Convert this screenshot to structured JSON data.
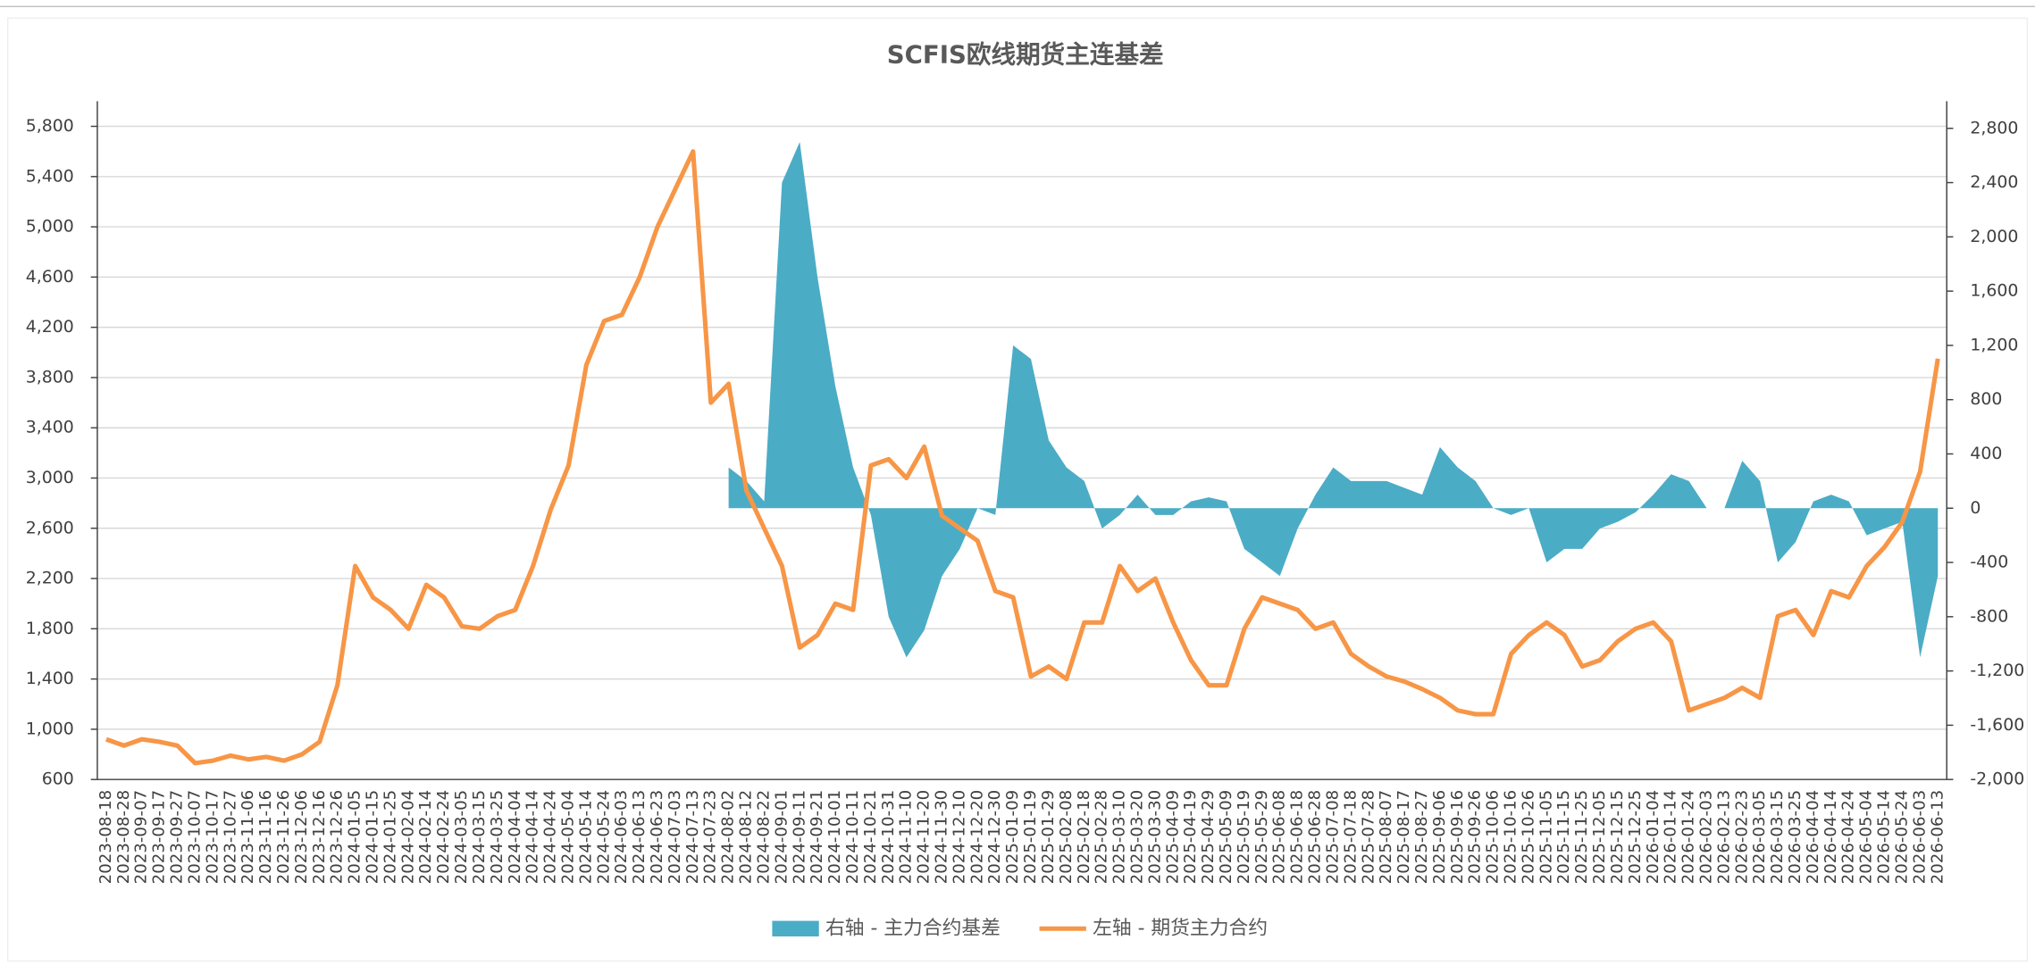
{
  "chart_data": {
    "type": "line",
    "title": "SCFIS欧线期货主连基差",
    "categories": [
      "2023-08-18",
      "2023-08-28",
      "2023-09-07",
      "2023-09-17",
      "2023-09-27",
      "2023-10-07",
      "2023-10-17",
      "2023-10-27",
      "2023-11-06",
      "2023-11-16",
      "2023-11-26",
      "2023-12-06",
      "2023-12-16",
      "2023-12-26",
      "2024-01-05",
      "2024-01-15",
      "2024-01-25",
      "2024-02-04",
      "2024-02-14",
      "2024-02-24",
      "2024-03-05",
      "2024-03-15",
      "2024-03-25",
      "2024-04-04",
      "2024-04-14",
      "2024-04-24",
      "2024-05-04",
      "2024-05-14",
      "2024-05-24",
      "2024-06-03",
      "2024-06-13",
      "2024-06-23",
      "2024-07-03",
      "2024-07-13",
      "2024-07-23",
      "2024-08-02",
      "2024-08-12",
      "2024-08-22",
      "2024-09-01",
      "2024-09-11",
      "2024-09-21",
      "2024-10-01",
      "2024-10-11",
      "2024-10-21",
      "2024-10-31",
      "2024-11-10",
      "2024-11-20",
      "2024-11-30",
      "2024-12-10",
      "2024-12-20",
      "2024-12-30",
      "2025-01-09",
      "2025-01-19",
      "2025-01-29",
      "2025-02-08",
      "2025-02-18",
      "2025-02-28",
      "2025-03-10",
      "2025-03-20",
      "2025-03-30",
      "2025-04-09",
      "2025-04-19",
      "2025-04-29",
      "2025-05-09",
      "2025-05-19",
      "2025-05-29",
      "2025-06-08",
      "2025-06-18",
      "2025-06-28",
      "2025-07-08",
      "2025-07-18",
      "2025-07-28",
      "2025-08-07",
      "2025-08-17",
      "2025-08-27",
      "2025-09-06",
      "2025-09-16",
      "2025-09-26",
      "2025-10-06",
      "2025-10-16",
      "2025-10-26",
      "2025-11-05",
      "2025-11-15",
      "2025-11-25",
      "2025-12-05",
      "2025-12-15",
      "2025-12-25",
      "2026-01-04",
      "2026-01-14",
      "2026-01-24",
      "2026-02-03",
      "2026-02-13",
      "2026-02-23",
      "2026-03-05",
      "2026-03-15",
      "2026-03-25",
      "2026-04-04",
      "2026-04-14",
      "2026-04-24",
      "2026-05-04",
      "2026-05-14",
      "2026-05-24",
      "2026-06-03",
      "2026-06-13"
    ],
    "series": [
      {
        "name": "右轴 - 主力合约基差",
        "type": "area",
        "axis": "y2",
        "color": "#4bacc6",
        "values": [
          null,
          null,
          null,
          null,
          null,
          null,
          null,
          null,
          null,
          null,
          null,
          null,
          null,
          null,
          null,
          null,
          null,
          null,
          null,
          null,
          null,
          null,
          null,
          null,
          null,
          null,
          null,
          null,
          null,
          null,
          null,
          null,
          null,
          null,
          null,
          300,
          200,
          50,
          2400,
          2700,
          1700,
          900,
          300,
          -50,
          -800,
          -1100,
          -900,
          -500,
          -300,
          0,
          -50,
          1200,
          1100,
          500,
          300,
          200,
          -150,
          -50,
          100,
          -50,
          -50,
          50,
          80,
          50,
          -300,
          -400,
          -500,
          -150,
          100,
          300,
          200,
          200,
          200,
          150,
          100,
          450,
          300,
          200,
          0,
          -50,
          0,
          -400,
          -300,
          -300,
          -150,
          -100,
          -30,
          100,
          250,
          200,
          0,
          0,
          350,
          200,
          -400,
          -250,
          50,
          100,
          50,
          -200,
          -150,
          -100,
          -1100,
          -500
        ]
      },
      {
        "name": "左轴 - 期货主力合约",
        "type": "line",
        "color": "#f79646",
        "values": [
          920,
          870,
          920,
          900,
          870,
          730,
          750,
          790,
          760,
          780,
          750,
          800,
          900,
          1350,
          2300,
          2050,
          1950,
          1800,
          2150,
          2050,
          1820,
          1800,
          1900,
          1950,
          2300,
          2750,
          3100,
          3900,
          4250,
          4300,
          4600,
          5000,
          5300,
          5600,
          3600,
          3750,
          2900,
          2600,
          2300,
          1650,
          1750,
          2000,
          1950,
          3100,
          3150,
          3000,
          3250,
          2700,
          2600,
          2500,
          2100,
          2050,
          1420,
          1500,
          1400,
          1850,
          1850,
          2300,
          2100,
          2200,
          1850,
          1550,
          1350,
          1350,
          1800,
          2050,
          2000,
          1950,
          1800,
          1850,
          1600,
          1500,
          1420,
          1380,
          1320,
          1250,
          1150,
          1120,
          1120,
          1600,
          1750,
          1850,
          1750,
          1500,
          1550,
          1700,
          1800,
          1850,
          1700,
          1150,
          1200,
          1250,
          1330,
          1250,
          1900,
          1950,
          1750,
          2100,
          2050,
          2300,
          2450,
          2650,
          3050,
          3950
        ]
      }
    ],
    "ylim": [
      600,
      6000
    ],
    "yticks": [
      600,
      {
        "value": 1000,
        "label": "1,000"
      },
      {
        "value": 1400,
        "label": "1,400"
      },
      {
        "value": 1800,
        "label": "1,800"
      },
      {
        "value": 2200,
        "label": "2,200"
      },
      {
        "value": 2600,
        "label": "2,600"
      },
      {
        "value": 3000,
        "label": "3,000"
      },
      {
        "value": 3400,
        "label": "3,400"
      },
      {
        "value": 3800,
        "label": "3,800"
      },
      {
        "value": 4200,
        "label": "4,200"
      },
      {
        "value": 4600,
        "label": "4,600"
      },
      {
        "value": 5000,
        "label": "5,000"
      },
      {
        "value": 5400,
        "label": "5,400"
      },
      {
        "value": 5800,
        "label": "5,800"
      }
    ],
    "y2lim": [
      -2000,
      3000
    ],
    "y2ticks": [
      {
        "value": -2000,
        "label": "-2,000"
      },
      {
        "value": -1600,
        "label": "-1,600"
      },
      {
        "value": -1200,
        "label": "-1,200"
      },
      -800,
      -400,
      0,
      400,
      800,
      {
        "value": 1200,
        "label": "1,200"
      },
      {
        "value": 1600,
        "label": "1,600"
      },
      {
        "value": 2000,
        "label": "2,000"
      },
      {
        "value": 2400,
        "label": "2,400"
      },
      {
        "value": 2800,
        "label": "2,800"
      }
    ],
    "grid": true,
    "legend": "bottom"
  }
}
